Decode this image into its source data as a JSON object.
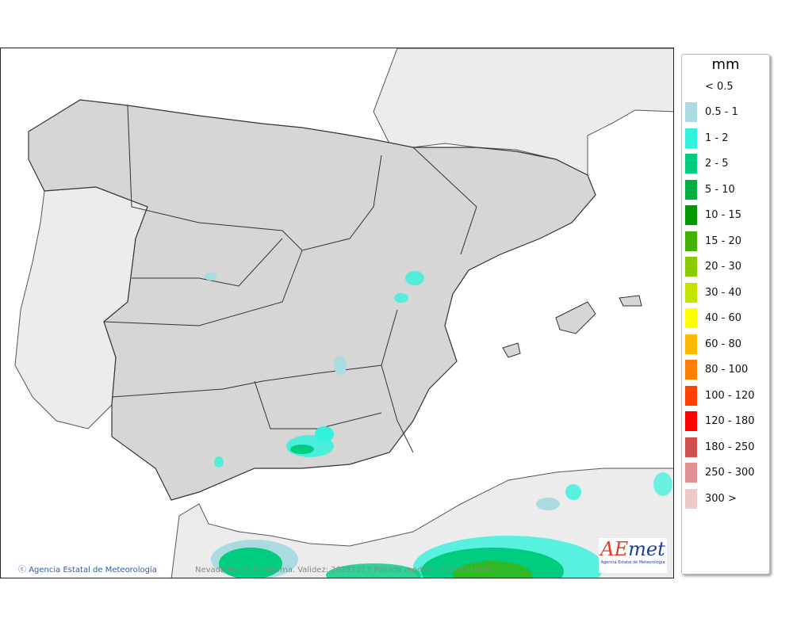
{
  "map": {
    "credit": "Agencia Estatal de Meteorología",
    "caption": "Nevada en 24 h máxima. Validez: 20251217 Pasada modelo: 2025121600",
    "logo": {
      "main_a": "A",
      "main_e": "E",
      "main_rest": "met",
      "subtitle": "Agencia Estatal de Meteorología"
    }
  },
  "legend": {
    "unit": "mm",
    "items": [
      {
        "label": "< 0.5",
        "color": ""
      },
      {
        "label": "0.5 - 1",
        "color": "#a9dbe0"
      },
      {
        "label": "1 - 2",
        "color": "#33f2dc"
      },
      {
        "label": "2 - 5",
        "color": "#00cc80"
      },
      {
        "label": "5 - 10",
        "color": "#00b040"
      },
      {
        "label": "10 - 15",
        "color": "#009900"
      },
      {
        "label": "15 - 20",
        "color": "#44b000"
      },
      {
        "label": "20 - 30",
        "color": "#88cc00"
      },
      {
        "label": "30 - 40",
        "color": "#c4e400"
      },
      {
        "label": "40 - 60",
        "color": "#ffff00"
      },
      {
        "label": "60 - 80",
        "color": "#ffb800"
      },
      {
        "label": "80 - 100",
        "color": "#ff7f00"
      },
      {
        "label": "100 - 120",
        "color": "#ff4000"
      },
      {
        "label": "120 - 180",
        "color": "#ff0000"
      },
      {
        "label": "180 - 250",
        "color": "#d05050"
      },
      {
        "label": "250 - 300",
        "color": "#e09090"
      },
      {
        "label": "300 >",
        "color": "#f0c8c8"
      }
    ]
  }
}
